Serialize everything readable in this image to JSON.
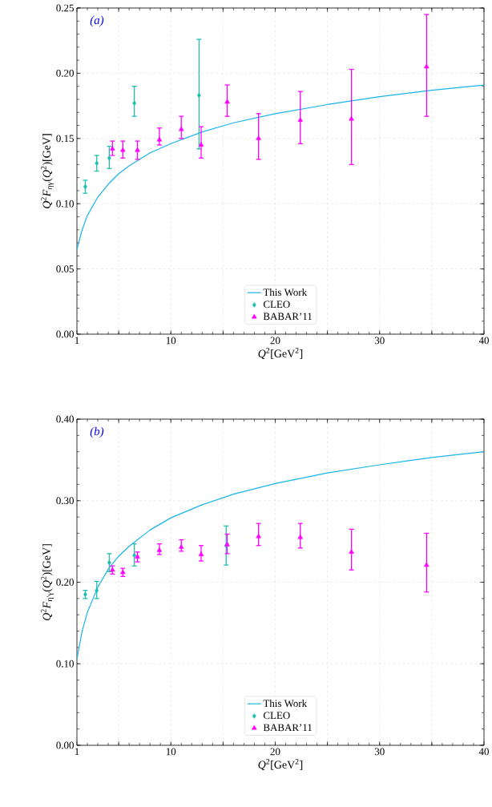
{
  "chart_data": [
    {
      "type": "scatter",
      "xlabel": "*Q*$^{2}$[GeV$^{2}$]",
      "ylabel": "*Q*$^{2}$*F*$_{ηγ}$(*Q*$^{2}$)[GeV]",
      "annotations": [
        "(a)"
      ],
      "xlim": [
        1,
        40
      ],
      "ylim": [
        0,
        0.25
      ],
      "xticks": [
        1,
        {
          "value": 5,
          "label": null
        },
        10,
        {
          "value": 15,
          "label": null
        },
        20,
        {
          "value": 25,
          "label": null
        },
        30,
        {
          "value": 35,
          "label": null
        },
        40
      ],
      "yticks": [
        {
          "value": 0,
          "label": "0.00"
        },
        {
          "value": 0.05,
          "label": "0.05"
        },
        {
          "value": 0.1,
          "label": "0.10"
        },
        {
          "value": 0.15,
          "label": "0.15"
        },
        {
          "value": 0.2,
          "label": "0.20"
        },
        {
          "value": 0.25,
          "label": "0.25"
        }
      ],
      "grid": true,
      "legend": "bottom",
      "series": [
        {
          "name": "This Work",
          "type": "line",
          "color": "#18b4ec",
          "marker": "none",
          "line_style": "solid",
          "x": [
            1,
            1.5,
            2,
            3,
            4,
            5,
            6,
            8,
            10,
            13,
            16,
            20,
            25,
            30,
            35,
            40
          ],
          "values": [
            0.065,
            0.08,
            0.091,
            0.105,
            0.115,
            0.123,
            0.129,
            0.139,
            0.146,
            0.155,
            0.162,
            0.169,
            0.176,
            0.182,
            0.187,
            0.191
          ]
        },
        {
          "name": "CLEO",
          "color": "#20bdb0",
          "marker": "diamond",
          "x": [
            1.8,
            2.9,
            4.1,
            6.5,
            12.7
          ],
          "values": [
            0.113,
            0.131,
            0.135,
            0.177,
            0.183
          ],
          "errors": [
            [
              0.108,
              0.118
            ],
            [
              0.125,
              0.137
            ],
            [
              0.127,
              0.144
            ],
            [
              0.167,
              0.19
            ],
            [
              0.142,
              0.226
            ]
          ]
        },
        {
          "name": "BABAR’11",
          "color": "#ff00ff",
          "marker": "triangle",
          "x": [
            4.4,
            5.4,
            6.8,
            8.9,
            11.0,
            12.9,
            15.4,
            18.4,
            22.4,
            27.3,
            34.5
          ],
          "values": [
            0.142,
            0.141,
            0.141,
            0.149,
            0.157,
            0.145,
            0.178,
            0.15,
            0.164,
            0.165,
            0.205
          ],
          "errors": [
            [
              0.137,
              0.148
            ],
            [
              0.135,
              0.148
            ],
            [
              0.134,
              0.148
            ],
            [
              0.145,
              0.158
            ],
            [
              0.15,
              0.167
            ],
            [
              0.135,
              0.159
            ],
            [
              0.167,
              0.191
            ],
            [
              0.134,
              0.169
            ],
            [
              0.146,
              0.186
            ],
            [
              0.13,
              0.203
            ],
            [
              0.167,
              0.245
            ]
          ]
        }
      ]
    },
    {
      "type": "scatter",
      "xlabel": "*Q*$^{2}$[GeV$^{2}$]",
      "ylabel": "*Q*$^{2}$*F*$_{η′γ}$(*Q*$^{2}$)[GeV]",
      "annotations": [
        "(b)"
      ],
      "xlim": [
        1,
        40
      ],
      "ylim": [
        0,
        0.4
      ],
      "xticks": [
        1,
        {
          "value": 5,
          "label": null
        },
        10,
        {
          "value": 15,
          "label": null
        },
        20,
        {
          "value": 25,
          "label": null
        },
        30,
        {
          "value": 35,
          "label": null
        },
        40
      ],
      "yticks": [
        {
          "value": 0,
          "label": "0.00"
        },
        {
          "value": 0.1,
          "label": "0.10"
        },
        {
          "value": 0.2,
          "label": "0.20"
        },
        {
          "value": 0.3,
          "label": "0.30"
        },
        {
          "value": 0.4,
          "label": "0.40"
        }
      ],
      "grid": true,
      "legend": "bottom",
      "series": [
        {
          "name": "This Work",
          "type": "line",
          "color": "#18b4ec",
          "marker": "none",
          "line_style": "solid",
          "x": [
            1,
            1.5,
            2,
            3,
            4,
            5,
            6,
            8,
            10,
            13,
            16,
            20,
            25,
            30,
            35,
            40
          ],
          "values": [
            0.106,
            0.14,
            0.163,
            0.194,
            0.216,
            0.232,
            0.244,
            0.264,
            0.279,
            0.295,
            0.308,
            0.321,
            0.334,
            0.344,
            0.353,
            0.36
          ]
        },
        {
          "name": "CLEO",
          "color": "#20bdb0",
          "marker": "diamond",
          "x": [
            1.8,
            2.9,
            4.1,
            6.5,
            15.3
          ],
          "values": [
            0.185,
            0.19,
            0.224,
            0.233,
            0.245
          ],
          "errors": [
            [
              0.18,
              0.19
            ],
            [
              0.18,
              0.201
            ],
            [
              0.213,
              0.235
            ],
            [
              0.22,
              0.247
            ],
            [
              0.221,
              0.269
            ]
          ]
        },
        {
          "name": "BABAR’11",
          "color": "#ff00ff",
          "marker": "triangle",
          "x": [
            4.4,
            5.4,
            6.8,
            8.9,
            11.0,
            12.9,
            15.4,
            18.4,
            22.4,
            27.3,
            34.5
          ],
          "values": [
            0.215,
            0.212,
            0.231,
            0.239,
            0.243,
            0.234,
            0.246,
            0.256,
            0.255,
            0.237,
            0.221
          ],
          "errors": [
            [
              0.21,
              0.22
            ],
            [
              0.207,
              0.217
            ],
            [
              0.225,
              0.237
            ],
            [
              0.234,
              0.247
            ],
            [
              0.238,
              0.252
            ],
            [
              0.226,
              0.245
            ],
            [
              0.235,
              0.259
            ],
            [
              0.245,
              0.272
            ],
            [
              0.242,
              0.272
            ],
            [
              0.215,
              0.265
            ],
            [
              0.188,
              0.26
            ]
          ]
        }
      ]
    }
  ]
}
